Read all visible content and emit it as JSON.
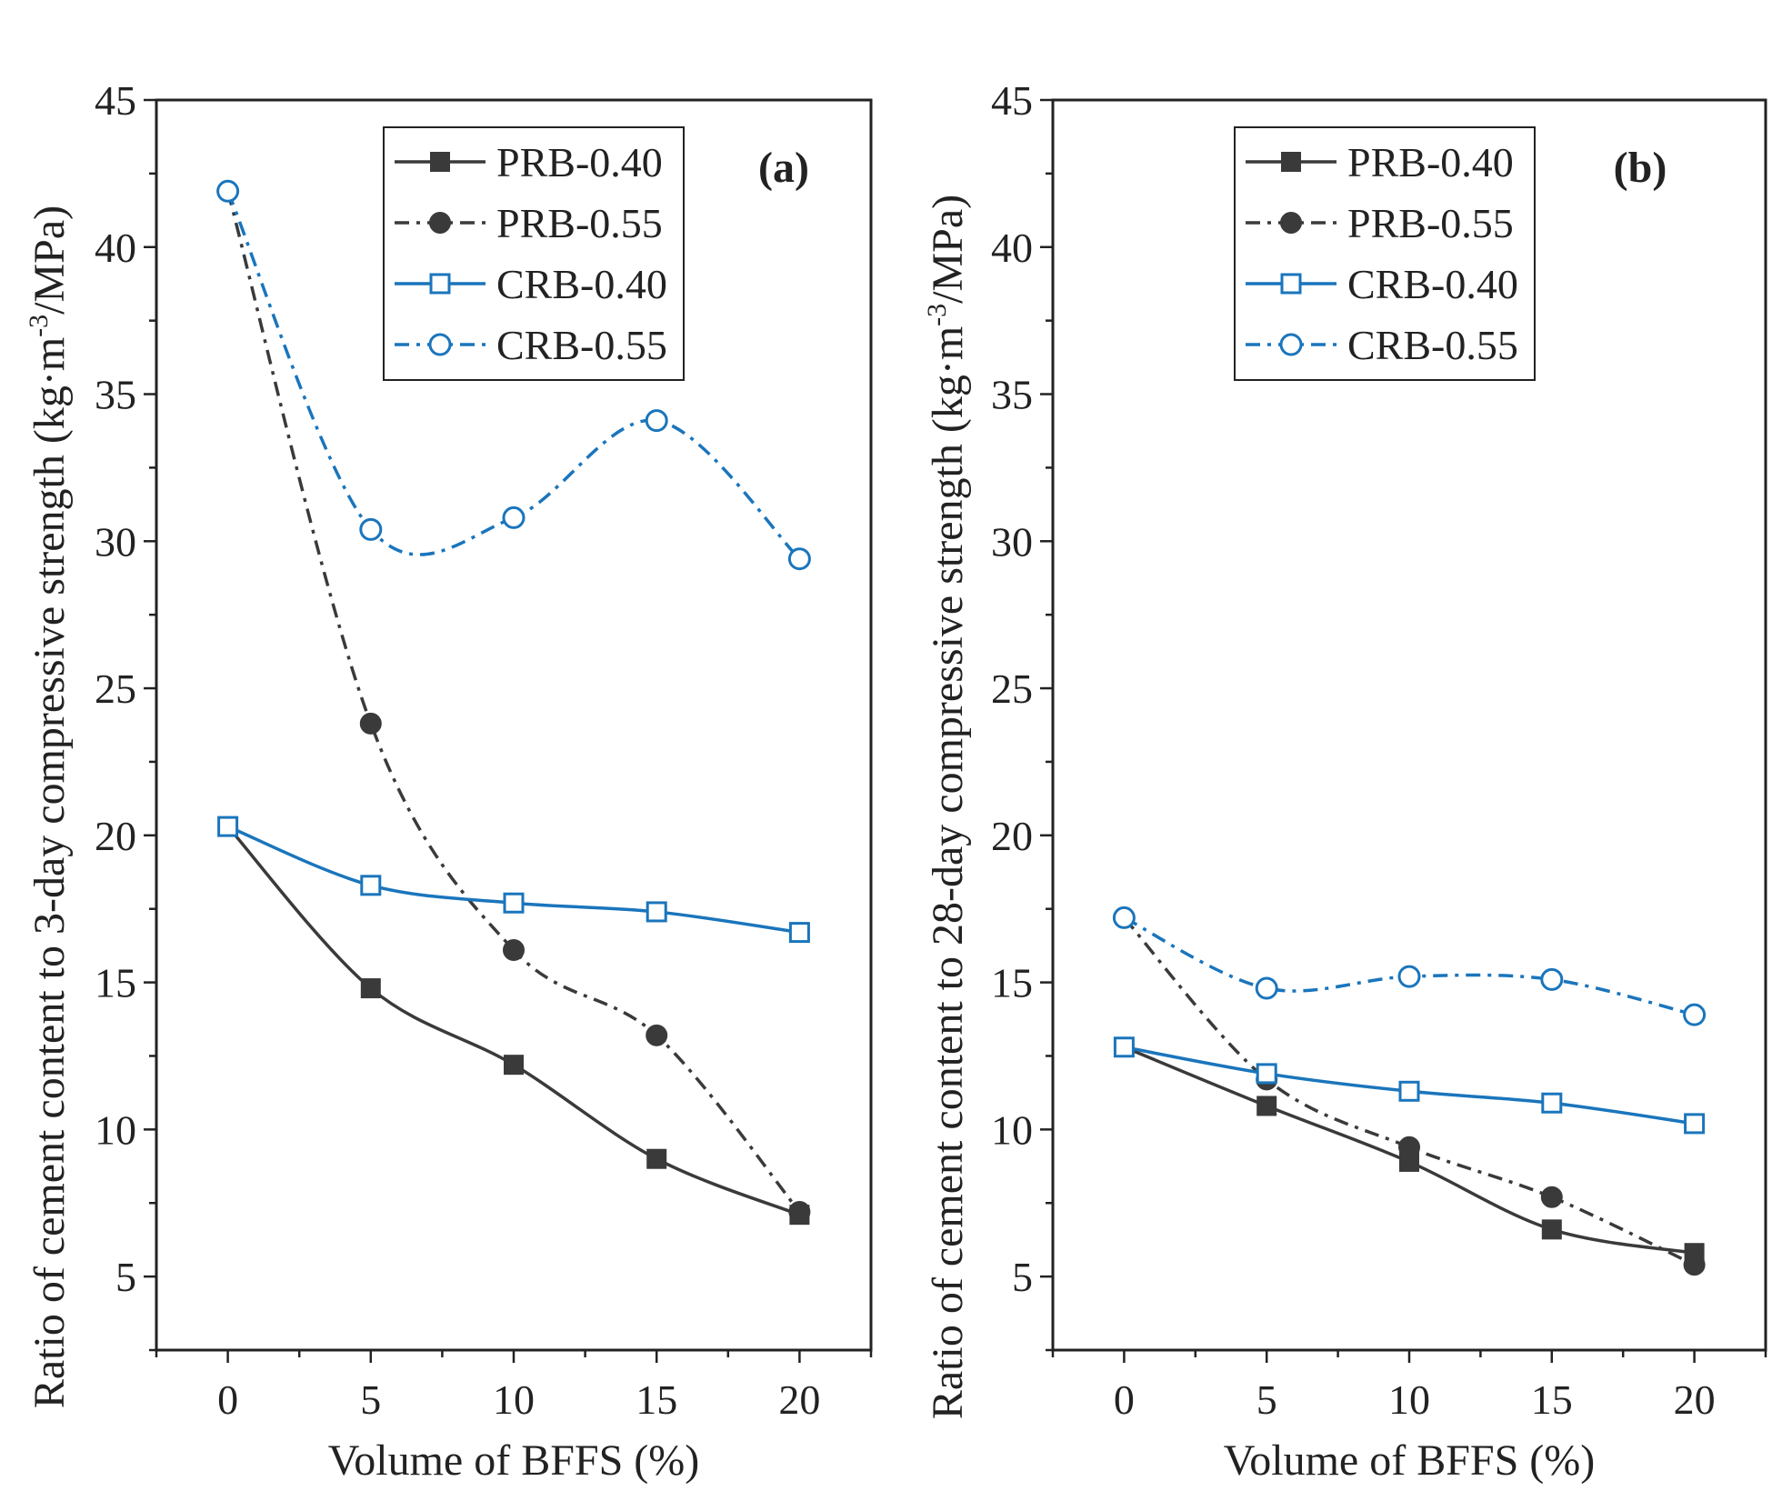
{
  "chart_data": [
    {
      "type": "line",
      "panel_label": "(a)",
      "xlabel": "Volume of BFFS (%)",
      "ylabel_prefix": "Ratio of cement content to 3-day compressive strength (kg·m",
      "ylabel_sup": "-3",
      "ylabel_suffix": "/MPa)",
      "xlim": [
        -2.5,
        22.5
      ],
      "ylim": [
        2.5,
        45
      ],
      "xticks": [
        0,
        5,
        10,
        15,
        20
      ],
      "yticks": [
        5,
        10,
        15,
        20,
        25,
        30,
        35,
        40,
        45
      ],
      "grid": false,
      "legend_position": "top-right",
      "x": [
        0,
        5,
        10,
        15,
        20
      ],
      "series": [
        {
          "name": "PRB-0.40",
          "values": [
            20.3,
            14.8,
            12.2,
            9.0,
            7.1
          ],
          "color": "#3a3a3a",
          "marker": "square-filled",
          "line": "solid"
        },
        {
          "name": "PRB-0.55",
          "values": [
            41.9,
            23.8,
            16.1,
            13.2,
            7.2
          ],
          "color": "#3a3a3a",
          "marker": "circle-filled",
          "line": "dashdot"
        },
        {
          "name": "CRB-0.40",
          "values": [
            20.3,
            18.3,
            17.7,
            17.4,
            16.7
          ],
          "color": "#1a75bc",
          "marker": "square-open",
          "line": "solid"
        },
        {
          "name": "CRB-0.55",
          "values": [
            41.9,
            30.4,
            30.8,
            34.1,
            29.4
          ],
          "color": "#1a75bc",
          "marker": "circle-open",
          "line": "dashdot"
        }
      ]
    },
    {
      "type": "line",
      "panel_label": "(b)",
      "xlabel": "Volume of BFFS (%)",
      "ylabel_prefix": "Ratio of cement content to 28-day compressive strength (kg·m",
      "ylabel_sup": "-3",
      "ylabel_suffix": "/MPa)",
      "xlim": [
        -2.5,
        22.5
      ],
      "ylim": [
        2.5,
        45
      ],
      "xticks": [
        0,
        5,
        10,
        15,
        20
      ],
      "yticks": [
        5,
        10,
        15,
        20,
        25,
        30,
        35,
        40,
        45
      ],
      "grid": false,
      "legend_position": "top-right",
      "x": [
        0,
        5,
        10,
        15,
        20
      ],
      "series": [
        {
          "name": "PRB-0.40",
          "values": [
            12.8,
            10.8,
            8.9,
            6.6,
            5.8
          ],
          "color": "#3a3a3a",
          "marker": "square-filled",
          "line": "solid"
        },
        {
          "name": "PRB-0.55",
          "values": [
            17.2,
            11.7,
            9.4,
            7.7,
            5.4
          ],
          "color": "#3a3a3a",
          "marker": "circle-filled",
          "line": "dashdot"
        },
        {
          "name": "CRB-0.40",
          "values": [
            12.8,
            11.9,
            11.3,
            10.9,
            10.2
          ],
          "color": "#1a75bc",
          "marker": "square-open",
          "line": "solid"
        },
        {
          "name": "CRB-0.55",
          "values": [
            17.2,
            14.8,
            15.2,
            15.1,
            13.9
          ],
          "color": "#1a75bc",
          "marker": "circle-open",
          "line": "dashdot"
        }
      ]
    }
  ]
}
